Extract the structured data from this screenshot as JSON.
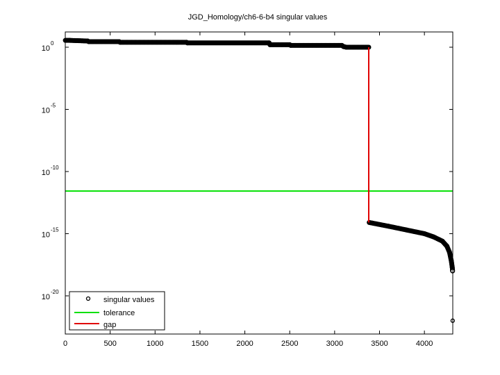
{
  "chart_data": {
    "type": "scatter",
    "title": "JGD_Homology/ch6-6-b4 singular values",
    "xlabel": "",
    "ylabel": "",
    "yscale": "log",
    "xlim": [
      0,
      4316
    ],
    "ylim_exponent": [
      -23.1,
      1.2
    ],
    "x_ticks": [
      0,
      500,
      1000,
      1500,
      2000,
      2500,
      3000,
      3500,
      4000
    ],
    "y_ticks": [
      {
        "base": "10",
        "exp": "0",
        "value": 0
      },
      {
        "base": "10",
        "exp": "-5",
        "value": -5
      },
      {
        "base": "10",
        "exp": "-10",
        "value": -10
      },
      {
        "base": "10",
        "exp": "-15",
        "value": -15
      },
      {
        "base": "10",
        "exp": "-20",
        "value": -20
      }
    ],
    "grid": false,
    "legend_position": "lower-left",
    "legend": [
      {
        "label": "singular values",
        "type": "marker-circle",
        "color": "#000000"
      },
      {
        "label": "tolerance",
        "type": "line",
        "color": "#00e000"
      },
      {
        "label": "gap",
        "type": "line",
        "color": "#e00000"
      }
    ],
    "series": [
      {
        "name": "singular values",
        "description": "log10 of singular values vs index (approximate)",
        "points": [
          [
            1,
            0.55
          ],
          [
            50,
            0.55
          ],
          [
            250,
            0.5
          ],
          [
            260,
            0.45
          ],
          [
            600,
            0.45
          ],
          [
            610,
            0.4
          ],
          [
            1350,
            0.4
          ],
          [
            1360,
            0.35
          ],
          [
            2270,
            0.35
          ],
          [
            2280,
            0.2
          ],
          [
            2500,
            0.2
          ],
          [
            2510,
            0.15
          ],
          [
            3080,
            0.15
          ],
          [
            3100,
            0.05
          ],
          [
            3130,
            0.0
          ],
          [
            3380,
            0.0
          ],
          [
            3385,
            -14.1
          ],
          [
            3600,
            -14.4
          ],
          [
            3800,
            -14.7
          ],
          [
            4000,
            -15.0
          ],
          [
            4100,
            -15.25
          ],
          [
            4200,
            -15.6
          ],
          [
            4250,
            -16.0
          ],
          [
            4280,
            -16.5
          ],
          [
            4300,
            -17.2
          ],
          [
            4310,
            -17.7
          ],
          [
            4314,
            -18.0
          ],
          [
            4315,
            -22.0
          ]
        ]
      },
      {
        "name": "tolerance",
        "value_log10": -11.57,
        "value": 2.7e-12
      },
      {
        "name": "gap",
        "x": 3380,
        "from_log10": 0.0,
        "to_log10": -14.1
      }
    ]
  }
}
